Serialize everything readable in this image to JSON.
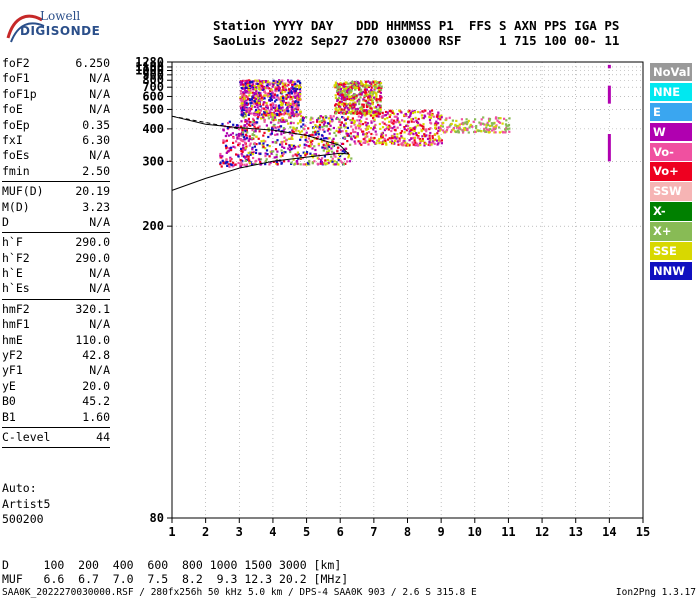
{
  "logo": {
    "line1": "Lowell",
    "line2": "DIGISONDE"
  },
  "header": {
    "line1": "Station YYYY DAY   DDD HHMMSS P1  FFS S AXN PPS IGA PS",
    "line2": "SaoLuis 2022 Sep27 270 030000 RSF     1 715 100 00- 11"
  },
  "params": [
    {
      "label": "foF2",
      "value": "6.250"
    },
    {
      "label": "foF1",
      "value": "N/A"
    },
    {
      "label": "foF1p",
      "value": "N/A"
    },
    {
      "label": "foE",
      "value": "N/A"
    },
    {
      "label": "foEp",
      "value": "0.35"
    },
    {
      "label": "fxI",
      "value": "6.30"
    },
    {
      "label": "foEs",
      "value": "N/A"
    },
    {
      "label": "fmin",
      "value": "2.50"
    },
    {
      "sep": true
    },
    {
      "label": "MUF(D)",
      "value": "20.19"
    },
    {
      "label": "M(D)",
      "value": "3.23"
    },
    {
      "label": "D",
      "value": "N/A"
    },
    {
      "sep": true
    },
    {
      "label": "h`F",
      "value": "290.0"
    },
    {
      "label": "h`F2",
      "value": "290.0"
    },
    {
      "label": "h`E",
      "value": "N/A"
    },
    {
      "label": "h`Es",
      "value": "N/A"
    },
    {
      "sep": true
    },
    {
      "label": "hmF2",
      "value": "320.1"
    },
    {
      "label": "hmF1",
      "value": "N/A"
    },
    {
      "label": "hmE",
      "value": "110.0"
    },
    {
      "label": "yF2",
      "value": "42.8"
    },
    {
      "label": "yF1",
      "value": "N/A"
    },
    {
      "label": "yE",
      "value": "20.0"
    },
    {
      "label": "B0",
      "value": "45.2"
    },
    {
      "label": "B1",
      "value": "1.60"
    },
    {
      "sep": true
    },
    {
      "label": "C-level",
      "value": "44"
    },
    {
      "sep": true
    }
  ],
  "auto": {
    "line1": "Auto:",
    "line2": "Artist5",
    "line3": "500200"
  },
  "muf_table": {
    "d_row": "D     100  200  400  600  800 1000 1500 3000 [km]",
    "muf_row": "MUF   6.6  6.7  7.0  7.5  8.2  9.3 12.3 20.2 [MHz]"
  },
  "footer": "SAA0K_2022270030000.RSF / 280fx256h 50 kHz 5.0 km / DPS-4 SAA0K 903 / 2.6 S 315.8 E",
  "version": "Ion2Png 1.3.17",
  "legend": [
    {
      "label": "NoVal",
      "color": "#999999"
    },
    {
      "label": "NNE",
      "color": "#00e8f0"
    },
    {
      "label": "E",
      "color": "#3aa6f0"
    },
    {
      "label": "W",
      "color": "#b000b0"
    },
    {
      "label": "Vo-",
      "color": "#f050a0"
    },
    {
      "label": "Vo+",
      "color": "#ee0020"
    },
    {
      "label": "SSW",
      "color": "#f6b4b4"
    },
    {
      "label": "X-",
      "color": "#008000"
    },
    {
      "label": "X+",
      "color": "#88bb55"
    },
    {
      "label": "SSE",
      "color": "#d8d800"
    },
    {
      "label": "NNW",
      "color": "#1010c0"
    }
  ],
  "chart_data": {
    "type": "scatter",
    "xlim": [
      1,
      15
    ],
    "ylim": [
      80,
      1280
    ],
    "yscale": "reciprocal",
    "x_ticks": [
      1,
      2,
      3,
      4,
      5,
      6,
      7,
      8,
      9,
      10,
      11,
      12,
      13,
      14,
      15
    ],
    "y_ticks": [
      80,
      200,
      300,
      400,
      500,
      600,
      700,
      800,
      900,
      1000,
      1100,
      1280
    ],
    "grid": "dotted",
    "echo_clusters": [
      {
        "f_start": 2.4,
        "f_end": 3.2,
        "h_min": 290,
        "h_max": 440,
        "colors": [
          "#1010c0",
          "#b000b0",
          "#f050a0",
          "#ee0020"
        ]
      },
      {
        "f_start": 3.0,
        "f_end": 6.3,
        "h_min": 295,
        "h_max": 470,
        "colors": [
          "#b000b0",
          "#f050a0",
          "#ee0020",
          "#d8d800",
          "#88bb55",
          "#1010c0"
        ]
      },
      {
        "f_start": 6.3,
        "f_end": 9.0,
        "h_min": 345,
        "h_max": 500,
        "colors": [
          "#ee0020",
          "#f050a0",
          "#b000b0",
          "#d8d800"
        ]
      },
      {
        "f_start": 9.0,
        "f_end": 11.0,
        "h_min": 390,
        "h_max": 460,
        "colors": [
          "#f050a0",
          "#d8d800",
          "#88bb55"
        ]
      },
      {
        "f_start": 3.0,
        "f_end": 4.8,
        "h_min": 470,
        "h_max": 820,
        "colors": [
          "#b000b0",
          "#f050a0",
          "#ee0020",
          "#1010c0",
          "#d8d800"
        ]
      },
      {
        "f_start": 5.8,
        "f_end": 7.2,
        "h_min": 480,
        "h_max": 800,
        "colors": [
          "#b000b0",
          "#ee0020",
          "#d8d800",
          "#88bb55"
        ]
      }
    ],
    "marker_x": 14,
    "marker_segments": [
      [
        1060,
        1170
      ],
      [
        540,
        720
      ],
      [
        300,
        380
      ]
    ],
    "trace_points": [
      {
        "f": 1.0,
        "h": 245
      },
      {
        "f": 2.0,
        "h": 265
      },
      {
        "f": 3.0,
        "h": 285
      },
      {
        "f": 4.0,
        "h": 300
      },
      {
        "f": 5.0,
        "h": 310
      },
      {
        "f": 6.0,
        "h": 320
      },
      {
        "f": 6.25,
        "h": 318
      },
      {
        "f": 6.0,
        "h": 342
      },
      {
        "f": 5.0,
        "h": 375
      },
      {
        "f": 4.0,
        "h": 395
      },
      {
        "f": 3.0,
        "h": 405
      },
      {
        "f": 2.0,
        "h": 420
      },
      {
        "f": 1.0,
        "h": 460
      }
    ]
  }
}
